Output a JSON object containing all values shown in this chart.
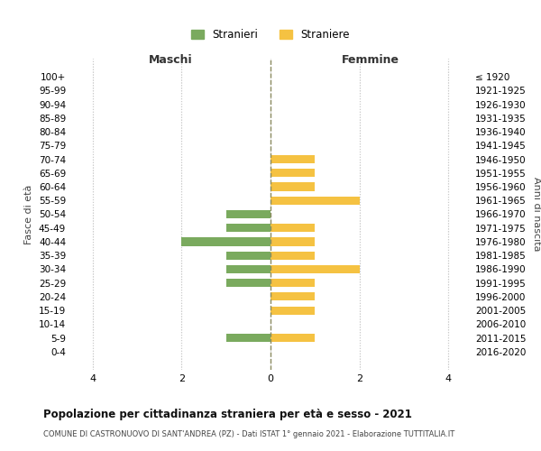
{
  "age_groups": [
    "100+",
    "95-99",
    "90-94",
    "85-89",
    "80-84",
    "75-79",
    "70-74",
    "65-69",
    "60-64",
    "55-59",
    "50-54",
    "45-49",
    "40-44",
    "35-39",
    "30-34",
    "25-29",
    "20-24",
    "15-19",
    "10-14",
    "5-9",
    "0-4"
  ],
  "birth_years": [
    "≤ 1920",
    "1921-1925",
    "1926-1930",
    "1931-1935",
    "1936-1940",
    "1941-1945",
    "1946-1950",
    "1951-1955",
    "1956-1960",
    "1961-1965",
    "1966-1970",
    "1971-1975",
    "1976-1980",
    "1981-1985",
    "1986-1990",
    "1991-1995",
    "1996-2000",
    "2001-2005",
    "2006-2010",
    "2011-2015",
    "2016-2020"
  ],
  "maschi": [
    0,
    0,
    0,
    0,
    0,
    0,
    0,
    0,
    0,
    0,
    1,
    1,
    2,
    1,
    1,
    1,
    0,
    0,
    0,
    1,
    0
  ],
  "femmine": [
    0,
    0,
    0,
    0,
    0,
    0,
    1,
    1,
    1,
    2,
    0,
    1,
    1,
    1,
    2,
    1,
    1,
    1,
    0,
    1,
    0
  ],
  "color_maschi": "#7aaa5e",
  "color_femmine": "#f5c242",
  "background_color": "#ffffff",
  "grid_color": "#cccccc",
  "center_line_color": "#8b8b60",
  "title": "Popolazione per cittadinanza straniera per età e sesso - 2021",
  "subtitle": "COMUNE DI CASTRONUOVO DI SANT'ANDREA (PZ) - Dati ISTAT 1° gennaio 2021 - Elaborazione TUTTITALIA.IT",
  "xlabel_left": "Maschi",
  "xlabel_right": "Femmine",
  "ylabel_left": "Fasce di età",
  "ylabel_right": "Anni di nascita",
  "legend_maschi": "Stranieri",
  "legend_femmine": "Straniere",
  "xlim": 4.5,
  "xticks": [
    -4,
    -2,
    0,
    2,
    4
  ],
  "xtick_labels": [
    "4",
    "2",
    "0",
    "2",
    "4"
  ]
}
